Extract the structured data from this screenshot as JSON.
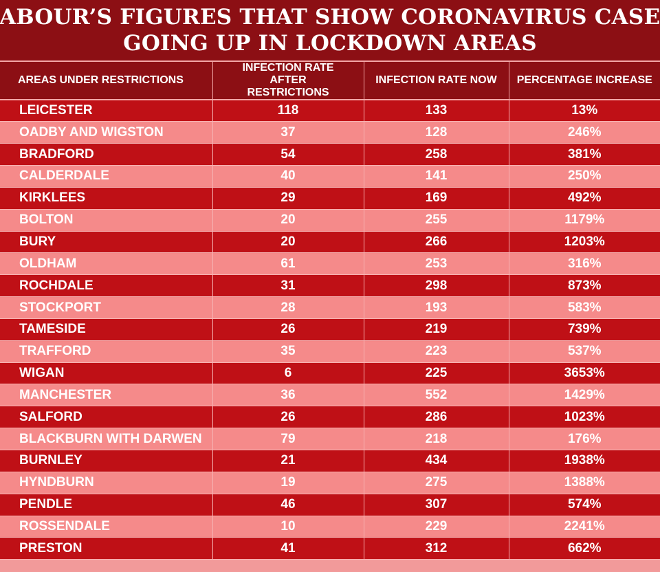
{
  "title_lines": [
    "LABOUR’S FIGURES THAT SHOW CORONAVIRUS CASES",
    "GOING UP IN LOCKDOWN AREAS"
  ],
  "colors": {
    "header_bg": "#8c0f14",
    "row_dark": "#bf1016",
    "row_light": "#f58a8a",
    "text": "#ffffff"
  },
  "chart_data": {
    "type": "table",
    "columns": [
      "AREAS UNDER RESTRICTIONS",
      "INFECTION RATE AFTER RESTRICTIONS",
      "INFECTION RATE NOW",
      "PERCENTAGE INCREASE"
    ],
    "rows": [
      [
        "LEICESTER",
        "118",
        "133",
        "13%"
      ],
      [
        "OADBY AND WIGSTON",
        "37",
        "128",
        "246%"
      ],
      [
        "BRADFORD",
        "54",
        "258",
        "381%"
      ],
      [
        "CALDERDALE",
        "40",
        "141",
        "250%"
      ],
      [
        "KIRKLEES",
        "29",
        "169",
        "492%"
      ],
      [
        "BOLTON",
        "20",
        "255",
        "1179%"
      ],
      [
        "BURY",
        "20",
        "266",
        "1203%"
      ],
      [
        "OLDHAM",
        "61",
        "253",
        "316%"
      ],
      [
        "ROCHDALE",
        "31",
        "298",
        "873%"
      ],
      [
        "STOCKPORT",
        "28",
        "193",
        "583%"
      ],
      [
        "TAMESIDE",
        "26",
        "219",
        "739%"
      ],
      [
        "TRAFFORD",
        "35",
        "223",
        "537%"
      ],
      [
        "WIGAN",
        "6",
        "225",
        "3653%"
      ],
      [
        "MANCHESTER",
        "36",
        "552",
        "1429%"
      ],
      [
        "SALFORD",
        "26",
        "286",
        "1023%"
      ],
      [
        "BLACKBURN WITH DARWEN",
        "79",
        "218",
        "176%"
      ],
      [
        "BURNLEY",
        "21",
        "434",
        "1938%"
      ],
      [
        "HYNDBURN",
        "19",
        "275",
        "1388%"
      ],
      [
        "PENDLE",
        "46",
        "307",
        "574%"
      ],
      [
        "ROSSENDALE",
        "10",
        "229",
        "2241%"
      ],
      [
        "PRESTON",
        "41",
        "312",
        "662%"
      ]
    ]
  }
}
